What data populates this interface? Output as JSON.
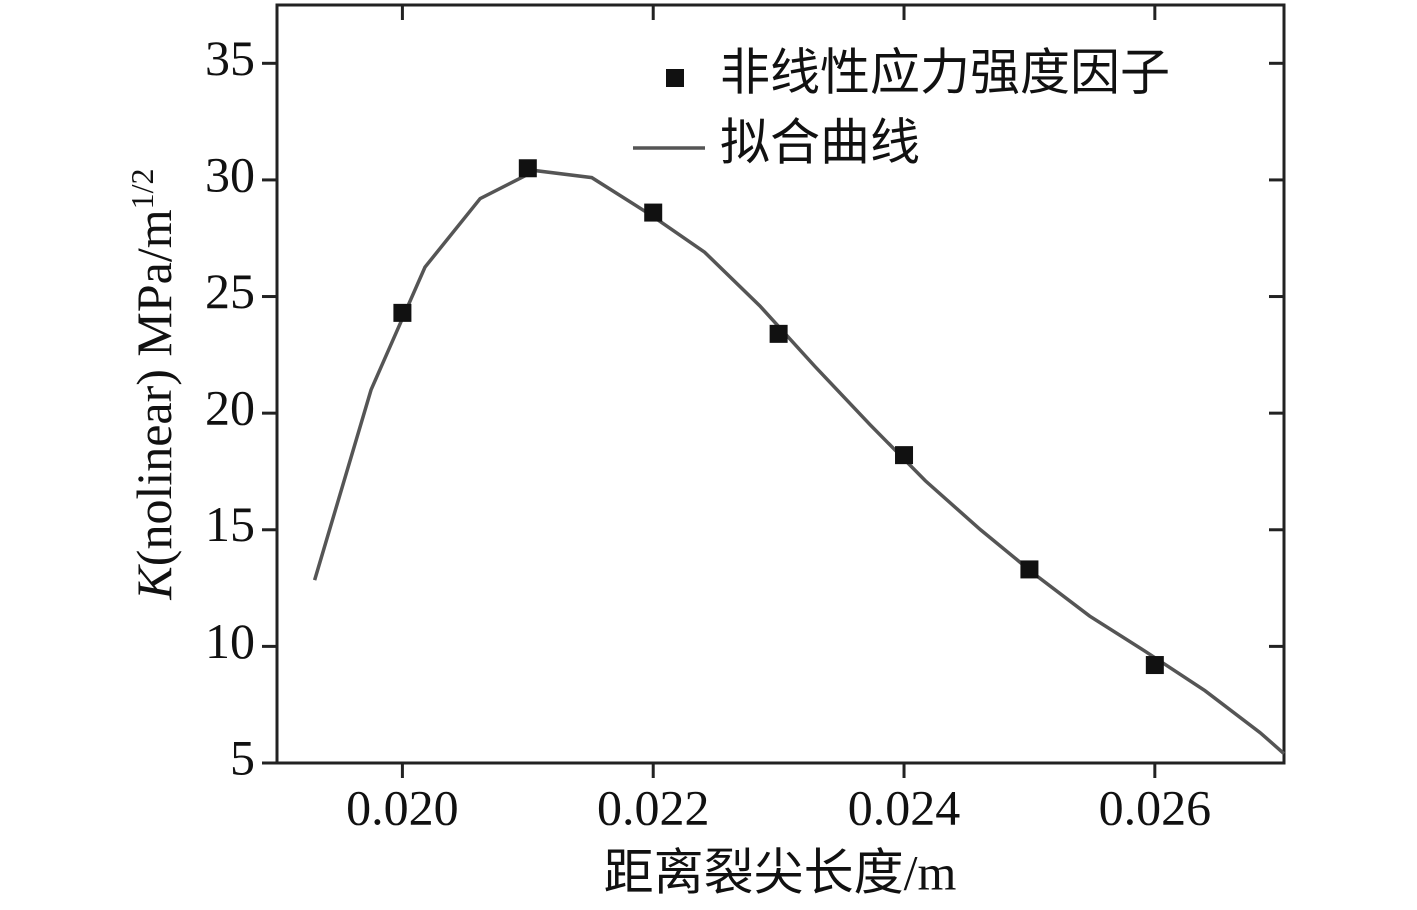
{
  "chart_data": {
    "type": "scatter",
    "x_label": "距离裂尖长度/m",
    "y_label": {
      "italic": "K",
      "main": "(nolinear) MPa/m",
      "sup": "1/2"
    },
    "xlim": [
      0.019,
      0.02703
    ],
    "ylim": [
      5,
      37.5
    ],
    "xticks": [
      {
        "value": 0.02,
        "label": "0.020"
      },
      {
        "value": 0.022,
        "label": "0.022"
      },
      {
        "value": 0.024,
        "label": "0.024"
      },
      {
        "value": 0.026,
        "label": "0.026"
      }
    ],
    "yticks": [
      5,
      10,
      15,
      20,
      25,
      30,
      35
    ],
    "legend": "upper right",
    "series": [
      {
        "name": "非线性应力强度因子",
        "type": "scatter",
        "color": "#111111",
        "x": [
          0.02,
          0.021,
          0.022,
          0.023,
          0.024,
          0.025,
          0.026
        ],
        "values": [
          24.3,
          30.5,
          28.6,
          23.4,
          18.2,
          13.3,
          9.2
        ]
      },
      {
        "name": "拟合曲线",
        "type": "line",
        "color": "#555555",
        "x": [
          0.0193,
          0.01975,
          0.02018,
          0.02062,
          0.02106,
          0.02151,
          0.02198,
          0.02241,
          0.02285,
          0.02329,
          0.02373,
          0.02417,
          0.02461,
          0.02504,
          0.02548,
          0.02592,
          0.0264,
          0.02684,
          0.02703
        ],
        "values": [
          12.84,
          21.0,
          26.26,
          29.2,
          30.4,
          30.1,
          28.5,
          26.9,
          24.6,
          22.0,
          19.5,
          17.1,
          15.0,
          13.1,
          11.3,
          9.8,
          8.1,
          6.3,
          5.4
        ]
      }
    ]
  }
}
